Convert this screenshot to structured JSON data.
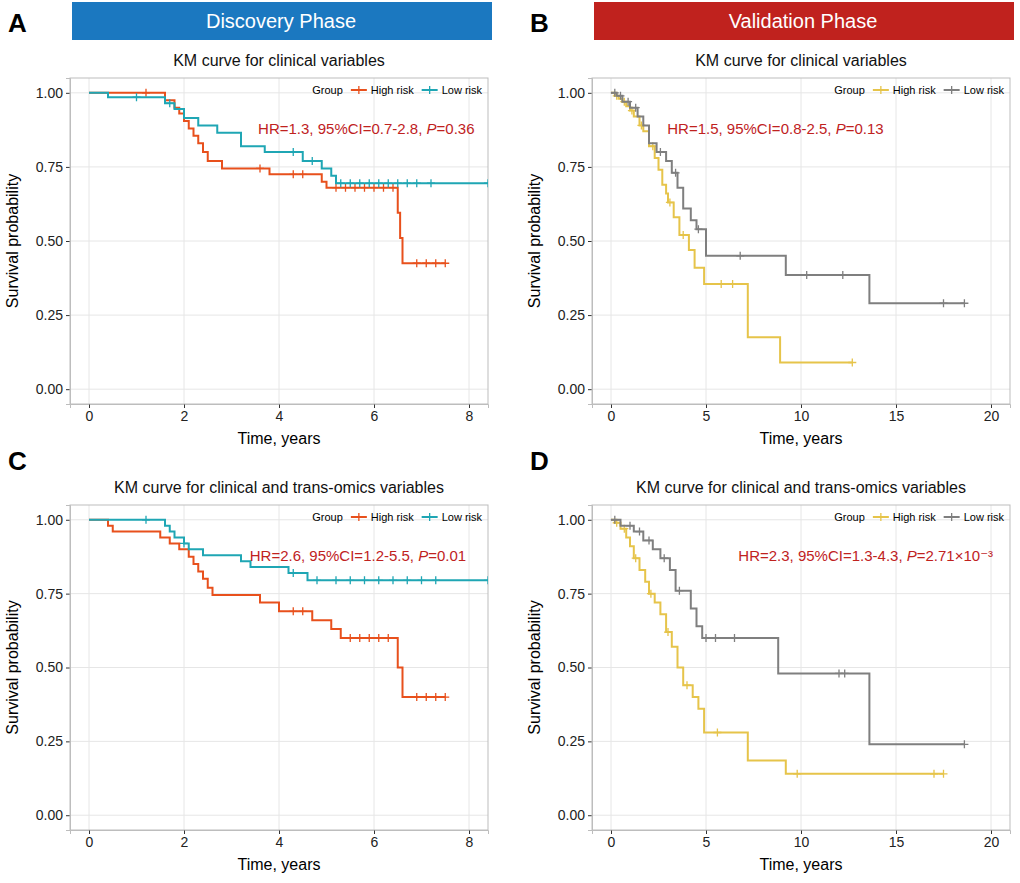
{
  "headers": [
    {
      "text": "Discovery Phase",
      "color": "#1b78c0"
    },
    {
      "text": "Validation Phase",
      "color": "#c0221e"
    }
  ],
  "chart_data": [
    {
      "type": "line",
      "panel": "A",
      "title": "KM curve for clinical variables",
      "x_label": "Time, years",
      "y_label": "Survival probability",
      "annotation": "HR=1.3, 95%CI=0.7-2.8, P=0.36",
      "legend_title": "Group",
      "legend": "top-right",
      "grid": true,
      "xlim": [
        -0.4,
        8.4
      ],
      "xticks": [
        0,
        2,
        4,
        6,
        8
      ],
      "ylim": [
        -0.05,
        1.05
      ],
      "yticks": [
        {
          "value": 0,
          "label": "0.00"
        },
        {
          "value": 0.25,
          "label": "0.25"
        },
        {
          "value": 0.5,
          "label": "0.50"
        },
        {
          "value": 0.75,
          "label": "0.75"
        },
        {
          "value": 1,
          "label": "1.00"
        }
      ],
      "series": [
        {
          "name": "High risk",
          "color": "#e8501c",
          "x": [
            0,
            1.6,
            1.8,
            1.9,
            2.0,
            2.1,
            2.2,
            2.3,
            2.4,
            2.5,
            2.8,
            3.8,
            4.9,
            5.0,
            6.5,
            6.55,
            6.6,
            7.5
          ],
          "values": [
            1.0,
            0.975,
            0.95,
            0.93,
            0.905,
            0.88,
            0.855,
            0.83,
            0.8,
            0.77,
            0.745,
            0.725,
            0.7,
            0.68,
            0.595,
            0.51,
            0.425,
            0.425
          ],
          "censored": [
            1.2,
            3.6,
            4.3,
            4.5,
            5.2,
            5.4,
            5.6,
            5.8,
            6.0,
            6.2,
            6.4,
            6.9,
            7.1,
            7.3,
            7.5
          ]
        },
        {
          "name": "Low risk",
          "color": "#1fa6b4",
          "x": [
            0,
            0.4,
            1.6,
            1.8,
            2.0,
            2.3,
            2.7,
            3.2,
            3.7,
            4.5,
            4.9,
            5.1,
            5.2,
            8.4
          ],
          "values": [
            1.0,
            0.985,
            0.965,
            0.945,
            0.915,
            0.89,
            0.865,
            0.82,
            0.8,
            0.77,
            0.745,
            0.72,
            0.695,
            0.695
          ],
          "censored": [
            1.0,
            1.7,
            4.3,
            4.7,
            5.3,
            5.5,
            5.7,
            5.9,
            6.1,
            6.3,
            6.5,
            6.7,
            6.9,
            7.2,
            8.4
          ]
        }
      ]
    },
    {
      "type": "line",
      "panel": "B",
      "title": "KM curve for clinical variables",
      "x_label": "Time, years",
      "y_label": "Survival probability",
      "annotation": "HR=1.5, 95%CI=0.8-2.5, P=0.13",
      "legend_title": "Group",
      "legend": "top-right",
      "grid": true,
      "xlim": [
        -1,
        21
      ],
      "xticks": [
        0,
        5,
        10,
        15,
        20
      ],
      "ylim": [
        -0.05,
        1.05
      ],
      "yticks": [
        {
          "value": 0,
          "label": "0.00"
        },
        {
          "value": 0.25,
          "label": "0.25"
        },
        {
          "value": 0.5,
          "label": "0.50"
        },
        {
          "value": 0.75,
          "label": "0.75"
        },
        {
          "value": 1,
          "label": "1.00"
        }
      ],
      "series": [
        {
          "name": "High risk",
          "color": "#e6c44a",
          "x": [
            0,
            0.2,
            0.4,
            0.6,
            0.8,
            1.0,
            1.2,
            1.5,
            1.7,
            2.0,
            2.3,
            2.5,
            2.7,
            2.9,
            3.0,
            3.3,
            3.6,
            4.1,
            4.4,
            4.9,
            7.2,
            8.9,
            12.7
          ],
          "values": [
            1.0,
            0.99,
            0.98,
            0.97,
            0.955,
            0.94,
            0.92,
            0.89,
            0.87,
            0.82,
            0.78,
            0.74,
            0.69,
            0.66,
            0.63,
            0.58,
            0.52,
            0.47,
            0.41,
            0.355,
            0.175,
            0.09,
            0.09
          ],
          "censored": [
            0.3,
            0.7,
            1.1,
            1.6,
            2.2,
            3.1,
            3.8,
            5.8,
            6.4,
            12.7
          ]
        },
        {
          "name": "Low risk",
          "color": "#7f7f7f",
          "x": [
            0,
            0.3,
            0.6,
            1.0,
            1.4,
            1.7,
            2.0,
            2.4,
            2.9,
            3.2,
            3.5,
            3.8,
            4.2,
            4.5,
            5.0,
            9.2,
            13.6,
            18.6
          ],
          "values": [
            1.0,
            0.99,
            0.97,
            0.95,
            0.92,
            0.89,
            0.83,
            0.8,
            0.77,
            0.73,
            0.68,
            0.61,
            0.57,
            0.54,
            0.45,
            0.385,
            0.29,
            0.29
          ],
          "censored": [
            0.2,
            0.5,
            0.9,
            1.3,
            2.6,
            3.4,
            4.6,
            6.8,
            10.3,
            12.2,
            17.5,
            18.6
          ]
        }
      ]
    },
    {
      "type": "line",
      "panel": "C",
      "title": "KM curve for clinical and trans-omics variables",
      "x_label": "Time, years",
      "y_label": "Survival probability",
      "annotation": "HR=2.6, 95%CI=1.2-5.5, P=0.01",
      "legend_title": "Group",
      "legend": "top-right",
      "grid": true,
      "xlim": [
        -0.4,
        8.4
      ],
      "xticks": [
        0,
        2,
        4,
        6,
        8
      ],
      "ylim": [
        -0.05,
        1.05
      ],
      "yticks": [
        {
          "value": 0,
          "label": "0.00"
        },
        {
          "value": 0.25,
          "label": "0.25"
        },
        {
          "value": 0.5,
          "label": "0.50"
        },
        {
          "value": 0.75,
          "label": "0.75"
        },
        {
          "value": 1,
          "label": "1.00"
        }
      ],
      "series": [
        {
          "name": "High risk",
          "color": "#e8501c",
          "x": [
            0,
            0.4,
            0.5,
            1.5,
            1.7,
            1.9,
            2.1,
            2.2,
            2.3,
            2.4,
            2.5,
            2.6,
            3.6,
            4.0,
            4.7,
            5.1,
            5.3,
            6.5,
            6.6,
            7.5
          ],
          "values": [
            1.0,
            0.98,
            0.96,
            0.94,
            0.92,
            0.9,
            0.875,
            0.85,
            0.825,
            0.8,
            0.77,
            0.745,
            0.72,
            0.69,
            0.66,
            0.63,
            0.6,
            0.5,
            0.4,
            0.4
          ],
          "censored": [
            4.3,
            4.5,
            5.5,
            5.7,
            5.9,
            6.1,
            6.3,
            6.9,
            7.1,
            7.3,
            7.5
          ]
        },
        {
          "name": "Low risk",
          "color": "#1fa6b4",
          "x": [
            0,
            1.6,
            1.7,
            1.8,
            2.0,
            2.1,
            2.4,
            3.2,
            3.4,
            4.2,
            4.6,
            8.4
          ],
          "values": [
            1.0,
            0.98,
            0.96,
            0.94,
            0.92,
            0.9,
            0.88,
            0.86,
            0.84,
            0.82,
            0.795,
            0.795
          ],
          "censored": [
            1.2,
            2.0,
            4.3,
            4.8,
            5.2,
            5.5,
            5.8,
            6.1,
            6.4,
            6.7,
            7.0,
            7.3,
            8.4
          ]
        }
      ]
    },
    {
      "type": "line",
      "panel": "D",
      "title": "KM curve for clinical and trans-omics variables",
      "x_label": "Time, years",
      "y_label": "Survival probability",
      "annotation": "HR=2.3, 95%CI=1.3-4.3, P=2.71×10⁻³",
      "legend_title": "Group",
      "legend": "top-right",
      "grid": true,
      "xlim": [
        -1,
        21
      ],
      "xticks": [
        0,
        5,
        10,
        15,
        20
      ],
      "ylim": [
        -0.05,
        1.05
      ],
      "yticks": [
        {
          "value": 0,
          "label": "0.00"
        },
        {
          "value": 0.25,
          "label": "0.25"
        },
        {
          "value": 0.5,
          "label": "0.50"
        },
        {
          "value": 0.75,
          "label": "0.75"
        },
        {
          "value": 1,
          "label": "1.00"
        }
      ],
      "series": [
        {
          "name": "High risk",
          "color": "#e6c44a",
          "x": [
            0,
            0.2,
            0.5,
            0.8,
            1.0,
            1.2,
            1.5,
            1.8,
            2.0,
            2.3,
            2.6,
            2.9,
            3.2,
            3.5,
            3.8,
            4.3,
            4.6,
            4.9,
            7.2,
            9.2,
            17.5
          ],
          "values": [
            1.0,
            0.99,
            0.97,
            0.94,
            0.91,
            0.87,
            0.83,
            0.79,
            0.75,
            0.72,
            0.68,
            0.62,
            0.57,
            0.5,
            0.44,
            0.4,
            0.36,
            0.28,
            0.185,
            0.14,
            0.14
          ],
          "censored": [
            0.3,
            0.7,
            1.3,
            2.1,
            3.0,
            4.0,
            5.6,
            9.8,
            17.0,
            17.5
          ]
        },
        {
          "name": "Low risk",
          "color": "#7f7f7f",
          "x": [
            0,
            0.5,
            1.2,
            1.7,
            2.2,
            2.6,
            3.1,
            3.4,
            4.2,
            4.5,
            4.8,
            8.8,
            13.6,
            18.6
          ],
          "values": [
            1.0,
            0.98,
            0.96,
            0.93,
            0.9,
            0.87,
            0.83,
            0.76,
            0.7,
            0.64,
            0.6,
            0.48,
            0.24,
            0.24
          ],
          "censored": [
            0.2,
            1.0,
            1.5,
            2.0,
            2.8,
            3.6,
            5.0,
            5.5,
            6.5,
            12.0,
            12.3,
            18.6
          ]
        }
      ]
    }
  ]
}
